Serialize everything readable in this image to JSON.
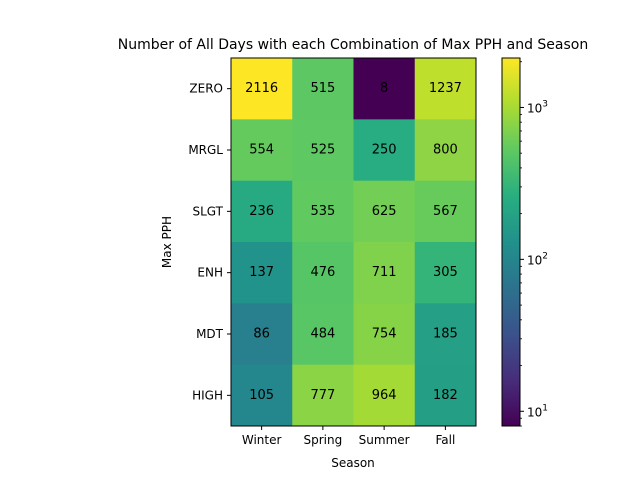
{
  "chart_data": {
    "type": "heatmap",
    "title": "Number of All Days with each Combination of Max PPH and Season",
    "xlabel": "Season",
    "ylabel": "Max PPH",
    "x_categories": [
      "Winter",
      "Spring",
      "Summer",
      "Fall"
    ],
    "y_categories": [
      "ZERO",
      "MRGL",
      "SLGT",
      "ENH",
      "MDT",
      "HIGH"
    ],
    "values": [
      [
        2116,
        515,
        8,
        1237
      ],
      [
        554,
        525,
        250,
        800
      ],
      [
        236,
        535,
        625,
        567
      ],
      [
        137,
        476,
        711,
        305
      ],
      [
        86,
        484,
        754,
        185
      ],
      [
        105,
        777,
        964,
        182
      ]
    ],
    "colormap": "viridis",
    "color_scale": "log",
    "color_range": [
      8,
      2116
    ],
    "colorbar": {
      "tick_labels": [
        {
          "base": "10",
          "exp": "1",
          "value": 10
        },
        {
          "base": "10",
          "exp": "2",
          "value": 100
        },
        {
          "base": "10",
          "exp": "3",
          "value": 1000
        }
      ]
    },
    "annotate_cells": true
  }
}
